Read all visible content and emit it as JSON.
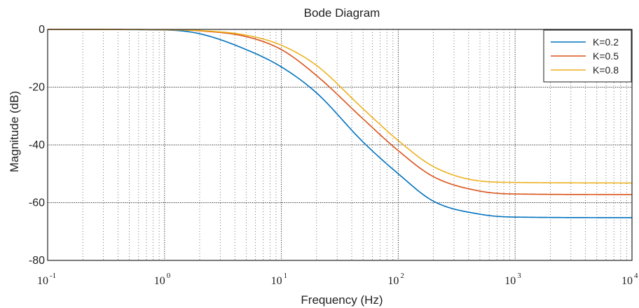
{
  "chart_data": {
    "type": "line",
    "title": "Bode Diagram",
    "xlabel": "Frequency  (Hz)",
    "ylabel": "Magnitude (dB)",
    "x_scale": "log",
    "xlim": [
      0.1,
      10000
    ],
    "ylim": [
      -80,
      0
    ],
    "grid": true,
    "legend_position": "top-right",
    "x_ticks": [
      {
        "base": "10",
        "exp": "-1"
      },
      {
        "base": "10",
        "exp": "0"
      },
      {
        "base": "10",
        "exp": "1"
      },
      {
        "base": "10",
        "exp": "2"
      },
      {
        "base": "10",
        "exp": "3"
      },
      {
        "base": "10",
        "exp": "4"
      }
    ],
    "y_ticks": [
      "0",
      "-20",
      "-40",
      "-60",
      "-80"
    ],
    "x": [
      0.1,
      1,
      2,
      5,
      10,
      20,
      50,
      100,
      200,
      500,
      1000,
      10000
    ],
    "series": [
      {
        "name": "K=0.2",
        "color": "#0072BD",
        "values": [
          0,
          -0.2,
          -1.5,
          -7,
          -13,
          -22,
          -39,
          -50,
          -59.5,
          -64,
          -65,
          -65.2
        ]
      },
      {
        "name": "K=0.5",
        "color": "#D95319",
        "values": [
          0,
          -0.1,
          -0.5,
          -2.5,
          -7,
          -16,
          -31,
          -42,
          -51,
          -56,
          -57,
          -57.2
        ]
      },
      {
        "name": "K=0.8",
        "color": "#EDB120",
        "values": [
          0,
          -0.1,
          -0.4,
          -2,
          -5.5,
          -12.5,
          -27.5,
          -38.5,
          -47.5,
          -52.5,
          -53,
          -53.2
        ]
      }
    ]
  }
}
